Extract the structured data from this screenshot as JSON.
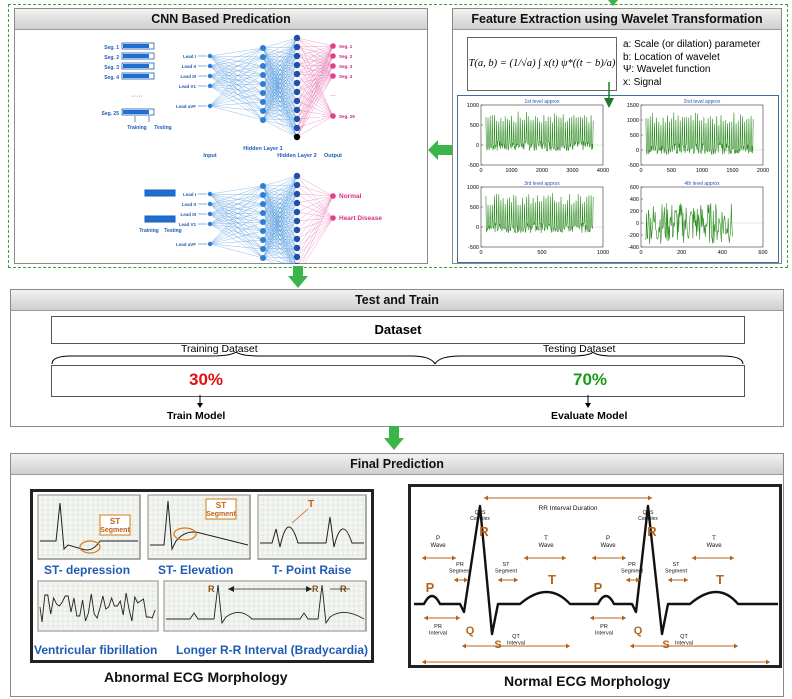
{
  "cnn": {
    "title": "CNN Based Predication",
    "segments": [
      "Seg. 1",
      "Seg. 2",
      "Seg. 3",
      "Seg. 4",
      "Seg. 25"
    ],
    "dots": "·····",
    "training": "Training",
    "testing": "Testing",
    "leads": [
      "Lead I",
      "Lead II",
      "Lead III",
      "Lead V1",
      "Lead aVF"
    ],
    "input": "Input",
    "hidden1": "Hidden Layer 1",
    "hidden2": "Hidden Layer 2",
    "output": "Output",
    "out_segments": [
      "Seg. 1",
      "Seg. 2",
      "Seg. 3",
      "Seg. 4",
      "Seg. 25"
    ],
    "normal": "Normal",
    "heart_disease": "Heart Disease"
  },
  "wavelet": {
    "title": "Feature Extraction using Wavelet Transformation",
    "formula": "T(a, b) = (1/√a) ∫ x(t) ψ*((t − b)/a) dt",
    "legend": [
      {
        "key": "a:",
        "text": "Scale (or dilation) parameter"
      },
      {
        "key": "b:",
        "text": "Location of wavelet"
      },
      {
        "key": "Ψ:",
        "text": "Wavelet function"
      },
      {
        "key": "x:",
        "text": "Signal"
      }
    ]
  },
  "chart_data": [
    {
      "type": "line",
      "title": "1st level approx",
      "xlim": [
        0,
        4000
      ],
      "ylim": [
        -500,
        1000
      ],
      "xticks": [
        "0",
        "1000",
        "2000",
        "3000",
        "4000"
      ],
      "yticks": [
        "-500",
        "0",
        "500",
        "1000"
      ]
    },
    {
      "type": "line",
      "title": "2nd level approx",
      "xlim": [
        0,
        2000
      ],
      "ylim": [
        -500,
        1500
      ],
      "xticks": [
        "0",
        "500",
        "1000",
        "1500",
        "2000"
      ],
      "yticks": [
        "-500",
        "0",
        "500",
        "1000",
        "1500"
      ]
    },
    {
      "type": "line",
      "title": "3rd level approx",
      "xlim": [
        0,
        1000
      ],
      "ylim": [
        -500,
        1000
      ],
      "xticks": [
        "0",
        "500",
        "1000"
      ],
      "yticks": [
        "-500",
        "0",
        "500",
        "1000"
      ]
    },
    {
      "type": "line",
      "title": "4th level approx",
      "xlim": [
        0,
        600
      ],
      "ylim": [
        -400,
        600
      ],
      "xticks": [
        "0",
        "200",
        "400",
        "600"
      ],
      "yticks": [
        "-400",
        "-200",
        "0",
        "200",
        "400",
        "600"
      ]
    }
  ],
  "test_train": {
    "title": "Test and Train",
    "dataset": "Dataset",
    "training_dataset": "Training Dataset",
    "testing_dataset": "Testing Dataset",
    "train_pct": "30%",
    "test_pct": "70%",
    "train_model": "Train Model",
    "evaluate_model": "Evaluate Model",
    "train_color": "#e01010",
    "test_color": "#1a9a1a"
  },
  "final": {
    "title": "Final Prediction",
    "abnormal": {
      "st_label": "ST Segment",
      "t_label": "T",
      "r_label": "R",
      "st_depression": "ST- depression",
      "st_elevation": "ST- Elevation",
      "t_point_raise": "T- Point Raise",
      "vfib": "Ventricular fibrillation",
      "bradycardia": "Longer R-R Interval (Bradycardia)",
      "caption": "Abnormal ECG Morphology"
    },
    "normal": {
      "rr_interval": "RR Interval Duration",
      "qrs_complex": "QRS Complex",
      "p_wave": "P Wave",
      "t_wave": "T Wave",
      "pr_segment": "PR Segment",
      "st_segment": "ST Segment",
      "pr_interval": "PR Interval",
      "qt_interval": "QT Interval",
      "p": "P",
      "q": "Q",
      "r": "R",
      "s": "S",
      "t": "T",
      "caption": "Normal ECG Morphology"
    }
  }
}
